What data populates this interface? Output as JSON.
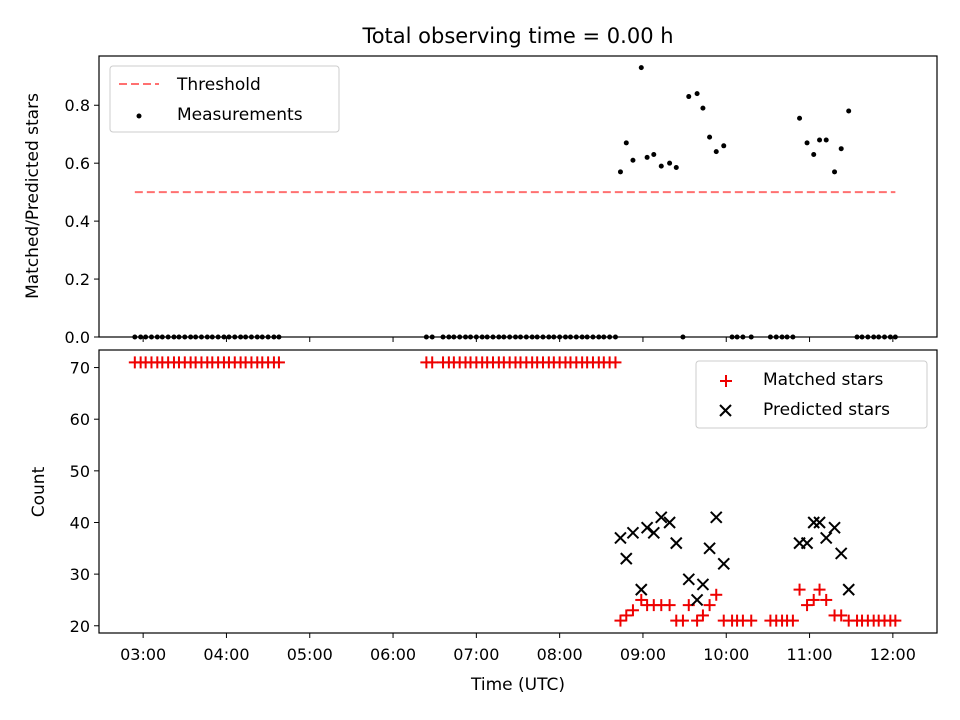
{
  "title": "Total observing time = 0.00 h",
  "chart_data": [
    {
      "type": "scatter",
      "ylabel": "Matched/Predicted stars",
      "xlim": [
        2.47,
        12.53
      ],
      "ylim": [
        0,
        0.97
      ],
      "yticks": [
        0.0,
        0.2,
        0.4,
        0.6,
        0.8
      ],
      "ytick_labels": [
        "0.0",
        "0.2",
        "0.4",
        "0.6",
        "0.8"
      ],
      "threshold": {
        "name": "Threshold",
        "value": 0.5,
        "x": [
          2.9,
          12.03
        ],
        "color": "#ff7070",
        "style": "dashed"
      },
      "measurements": {
        "name": "Measurements",
        "color": "#000000",
        "zero_x": [
          2.9,
          2.97,
          3.03,
          3.1,
          3.17,
          3.23,
          3.3,
          3.37,
          3.43,
          3.5,
          3.57,
          3.63,
          3.7,
          3.77,
          3.83,
          3.9,
          3.97,
          4.03,
          4.1,
          4.17,
          4.23,
          4.3,
          4.37,
          4.43,
          4.5,
          4.57,
          4.63,
          6.4,
          6.47,
          6.6,
          6.67,
          6.73,
          6.8,
          6.87,
          6.93,
          7.0,
          7.07,
          7.13,
          7.2,
          7.27,
          7.33,
          7.4,
          7.47,
          7.53,
          7.6,
          7.67,
          7.73,
          7.8,
          7.87,
          7.93,
          8.0,
          8.07,
          8.13,
          8.2,
          8.27,
          8.33,
          8.4,
          8.47,
          8.53,
          8.6,
          8.67,
          9.48,
          10.07,
          10.13,
          10.2,
          10.3,
          10.53,
          10.6,
          10.67,
          10.73,
          10.8,
          11.57,
          11.63,
          11.7,
          11.77,
          11.83,
          11.9,
          11.97,
          12.03
        ],
        "points": [
          {
            "x": 8.73,
            "y": 0.57
          },
          {
            "x": 8.8,
            "y": 0.67
          },
          {
            "x": 8.88,
            "y": 0.61
          },
          {
            "x": 8.98,
            "y": 0.93
          },
          {
            "x": 9.05,
            "y": 0.62
          },
          {
            "x": 9.13,
            "y": 0.63
          },
          {
            "x": 9.22,
            "y": 0.59
          },
          {
            "x": 9.32,
            "y": 0.6
          },
          {
            "x": 9.4,
            "y": 0.585
          },
          {
            "x": 9.55,
            "y": 0.83
          },
          {
            "x": 9.65,
            "y": 0.84
          },
          {
            "x": 9.72,
            "y": 0.79
          },
          {
            "x": 9.8,
            "y": 0.69
          },
          {
            "x": 9.88,
            "y": 0.64
          },
          {
            "x": 9.97,
            "y": 0.66
          },
          {
            "x": 10.88,
            "y": 0.755
          },
          {
            "x": 10.97,
            "y": 0.67
          },
          {
            "x": 11.05,
            "y": 0.63
          },
          {
            "x": 11.12,
            "y": 0.68
          },
          {
            "x": 11.2,
            "y": 0.68
          },
          {
            "x": 11.3,
            "y": 0.57
          },
          {
            "x": 11.38,
            "y": 0.65
          },
          {
            "x": 11.47,
            "y": 0.78
          }
        ]
      },
      "legend": [
        "Threshold",
        "Measurements"
      ],
      "legend_loc": "upper-left"
    },
    {
      "type": "scatter",
      "xlabel": "Time (UTC)",
      "ylabel": "Count",
      "xlim": [
        2.47,
        12.53
      ],
      "ylim": [
        18.6,
        73.4
      ],
      "yticks": [
        20,
        30,
        40,
        50,
        60,
        70
      ],
      "ytick_labels": [
        "20",
        "30",
        "40",
        "50",
        "60",
        "70"
      ],
      "xticks": [
        3,
        4,
        5,
        6,
        7,
        8,
        9,
        10,
        11,
        12
      ],
      "xtick_labels": [
        "03:00",
        "04:00",
        "05:00",
        "06:00",
        "07:00",
        "08:00",
        "09:00",
        "10:00",
        "11:00",
        "12:00"
      ],
      "matched": {
        "name": "Matched stars",
        "marker": "+",
        "color": "#ee0000",
        "max_x": [
          2.9,
          2.97,
          3.03,
          3.1,
          3.17,
          3.23,
          3.3,
          3.37,
          3.43,
          3.5,
          3.57,
          3.63,
          3.7,
          3.77,
          3.83,
          3.9,
          3.97,
          4.03,
          4.1,
          4.17,
          4.23,
          4.3,
          4.37,
          4.43,
          4.5,
          4.57,
          4.63,
          6.4,
          6.47,
          6.6,
          6.67,
          6.73,
          6.8,
          6.87,
          6.93,
          7.0,
          7.07,
          7.13,
          7.2,
          7.27,
          7.33,
          7.4,
          7.47,
          7.53,
          7.6,
          7.67,
          7.73,
          7.8,
          7.87,
          7.93,
          8.0,
          8.07,
          8.13,
          8.2,
          8.27,
          8.33,
          8.4,
          8.47,
          8.53,
          8.6,
          8.67
        ],
        "max_value": 71,
        "points": [
          {
            "x": 8.73,
            "y": 21
          },
          {
            "x": 8.8,
            "y": 22
          },
          {
            "x": 8.88,
            "y": 23
          },
          {
            "x": 8.98,
            "y": 25
          },
          {
            "x": 9.05,
            "y": 24
          },
          {
            "x": 9.13,
            "y": 24
          },
          {
            "x": 9.22,
            "y": 24
          },
          {
            "x": 9.32,
            "y": 24
          },
          {
            "x": 9.4,
            "y": 21
          },
          {
            "x": 9.48,
            "y": 21
          },
          {
            "x": 9.55,
            "y": 24
          },
          {
            "x": 9.65,
            "y": 21
          },
          {
            "x": 9.72,
            "y": 22
          },
          {
            "x": 9.8,
            "y": 24
          },
          {
            "x": 9.88,
            "y": 26
          },
          {
            "x": 9.97,
            "y": 21
          },
          {
            "x": 10.07,
            "y": 21
          },
          {
            "x": 10.13,
            "y": 21
          },
          {
            "x": 10.2,
            "y": 21
          },
          {
            "x": 10.3,
            "y": 21
          },
          {
            "x": 10.53,
            "y": 21
          },
          {
            "x": 10.6,
            "y": 21
          },
          {
            "x": 10.67,
            "y": 21
          },
          {
            "x": 10.73,
            "y": 21
          },
          {
            "x": 10.8,
            "y": 21
          },
          {
            "x": 10.88,
            "y": 27
          },
          {
            "x": 10.97,
            "y": 24
          },
          {
            "x": 11.05,
            "y": 25
          },
          {
            "x": 11.12,
            "y": 27
          },
          {
            "x": 11.2,
            "y": 25
          },
          {
            "x": 11.3,
            "y": 22
          },
          {
            "x": 11.38,
            "y": 22
          },
          {
            "x": 11.47,
            "y": 21
          },
          {
            "x": 11.57,
            "y": 21
          },
          {
            "x": 11.63,
            "y": 21
          },
          {
            "x": 11.7,
            "y": 21
          },
          {
            "x": 11.77,
            "y": 21
          },
          {
            "x": 11.83,
            "y": 21
          },
          {
            "x": 11.9,
            "y": 21
          },
          {
            "x": 11.97,
            "y": 21
          },
          {
            "x": 12.03,
            "y": 21
          }
        ]
      },
      "predicted": {
        "name": "Predicted stars",
        "marker": "x",
        "color": "#000000",
        "points": [
          {
            "x": 8.73,
            "y": 37
          },
          {
            "x": 8.8,
            "y": 33
          },
          {
            "x": 8.88,
            "y": 38
          },
          {
            "x": 8.98,
            "y": 27
          },
          {
            "x": 9.05,
            "y": 39
          },
          {
            "x": 9.13,
            "y": 38
          },
          {
            "x": 9.22,
            "y": 41
          },
          {
            "x": 9.32,
            "y": 40
          },
          {
            "x": 9.4,
            "y": 36
          },
          {
            "x": 9.55,
            "y": 29
          },
          {
            "x": 9.65,
            "y": 25
          },
          {
            "x": 9.72,
            "y": 28
          },
          {
            "x": 9.8,
            "y": 35
          },
          {
            "x": 9.88,
            "y": 41
          },
          {
            "x": 9.97,
            "y": 32
          },
          {
            "x": 10.88,
            "y": 36
          },
          {
            "x": 10.97,
            "y": 36
          },
          {
            "x": 11.05,
            "y": 40
          },
          {
            "x": 11.12,
            "y": 40
          },
          {
            "x": 11.2,
            "y": 37
          },
          {
            "x": 11.3,
            "y": 39
          },
          {
            "x": 11.38,
            "y": 34
          },
          {
            "x": 11.47,
            "y": 27
          }
        ]
      },
      "legend": [
        "Matched stars",
        "Predicted stars"
      ],
      "legend_loc": "upper-right"
    }
  ]
}
